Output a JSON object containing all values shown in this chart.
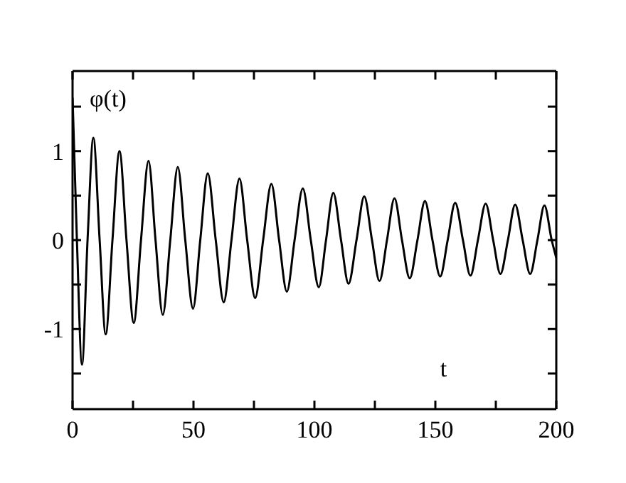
{
  "chart_data": {
    "type": "line",
    "xlabel": "t",
    "ylabel": "φ(t)",
    "x": [
      0,
      1.8,
      3.9,
      6.2,
      8.6,
      11.2,
      13.7,
      16.5,
      19.4,
      22.3,
      25.3,
      28.3,
      31.4,
      34.3,
      37.3,
      40.4,
      43.5,
      46.6,
      49.8,
      52.8,
      55.9,
      59.2,
      62.5,
      65.7,
      69,
      72.2,
      75.5,
      78.8,
      82.2,
      85.4,
      88.6,
      91.8,
      95.2,
      98.5,
      101.8,
      104.8,
      107.8,
      111,
      114.1,
      117.4,
      120.6,
      123.8,
      126.9,
      130,
      133.1,
      136.2,
      139.4,
      142.6,
      145.7,
      148.8,
      152,
      155.1,
      158.2,
      161.4,
      164.5,
      167.6,
      170.8,
      173.9,
      176.9,
      180,
      183,
      186.1,
      189.2,
      192.2,
      195.1,
      198.1,
      200
    ],
    "series": [
      {
        "color": "#000000",
        "values": [
          1.6,
          0,
          -1.4,
          0,
          1.15,
          0,
          -1.06,
          0,
          1.0,
          0,
          -0.93,
          0,
          0.89,
          0,
          -0.84,
          0,
          0.82,
          0,
          -0.77,
          0,
          0.75,
          0,
          -0.7,
          0,
          0.69,
          0,
          -0.65,
          0,
          0.63,
          0,
          -0.58,
          0,
          0.58,
          0,
          -0.53,
          0,
          0.53,
          0,
          -0.49,
          0,
          0.49,
          0,
          -0.46,
          0,
          0.47,
          0,
          -0.43,
          0,
          0.44,
          0,
          -0.41,
          0,
          0.42,
          0,
          -0.4,
          0,
          0.41,
          0,
          -0.38,
          0,
          0.4,
          0,
          -0.38,
          0,
          0.39,
          0,
          -0.2
        ]
      }
    ],
    "xlim": [
      0,
      200
    ],
    "xticks": [
      0,
      {
        "value": 25,
        "label": null
      },
      50,
      {
        "value": 75,
        "label": null
      },
      100,
      {
        "value": 125,
        "label": null
      },
      150,
      {
        "value": 175,
        "label": null
      },
      200
    ],
    "ylim": [
      -1.9,
      1.9
    ],
    "yticks": [
      {
        "value": -1.5,
        "label": null
      },
      -1,
      {
        "value": -0.5,
        "label": null
      },
      0,
      {
        "value": 0.5,
        "label": null
      },
      1,
      {
        "value": 1.5,
        "label": null
      }
    ],
    "grid": false,
    "legend": false,
    "marker": "none",
    "line_style": "solid"
  }
}
